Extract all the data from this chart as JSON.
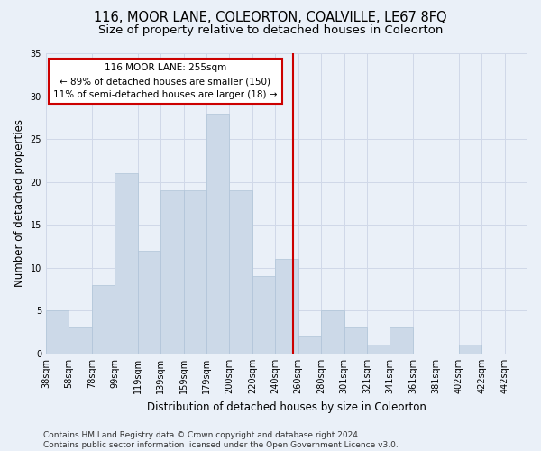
{
  "title": "116, MOOR LANE, COLEORTON, COALVILLE, LE67 8FQ",
  "subtitle": "Size of property relative to detached houses in Coleorton",
  "xlabel": "Distribution of detached houses by size in Coleorton",
  "ylabel": "Number of detached properties",
  "bar_values": [
    5,
    3,
    8,
    21,
    12,
    19,
    19,
    28,
    19,
    9,
    11,
    2,
    5,
    3,
    1,
    3,
    0,
    0,
    1,
    0,
    0
  ],
  "bar_labels": [
    "38sqm",
    "58sqm",
    "78sqm",
    "99sqm",
    "119sqm",
    "139sqm",
    "159sqm",
    "179sqm",
    "200sqm",
    "220sqm",
    "240sqm",
    "260sqm",
    "280sqm",
    "301sqm",
    "321sqm",
    "341sqm",
    "361sqm",
    "381sqm",
    "402sqm",
    "422sqm",
    "442sqm"
  ],
  "bar_color": "#ccd9e8",
  "bar_edge_color": "#b0c4d8",
  "vline_color": "#cc0000",
  "annotation_text": "116 MOOR LANE: 255sqm\n← 89% of detached houses are smaller (150)\n11% of semi-detached houses are larger (18) →",
  "annotation_box_facecolor": "#ffffff",
  "annotation_box_edgecolor": "#cc0000",
  "ylim": [
    0,
    35
  ],
  "yticks": [
    0,
    5,
    10,
    15,
    20,
    25,
    30,
    35
  ],
  "grid_color": "#d0d8e8",
  "bg_color": "#eaf0f8",
  "plot_bg_color": "#eaf0f8",
  "footnote": "Contains HM Land Registry data © Crown copyright and database right 2024.\nContains public sector information licensed under the Open Government Licence v3.0.",
  "title_fontsize": 10.5,
  "subtitle_fontsize": 9.5,
  "xlabel_fontsize": 8.5,
  "ylabel_fontsize": 8.5,
  "tick_fontsize": 7,
  "annotation_fontsize": 7.5,
  "footnote_fontsize": 6.5,
  "vline_bin_index": 10.77
}
